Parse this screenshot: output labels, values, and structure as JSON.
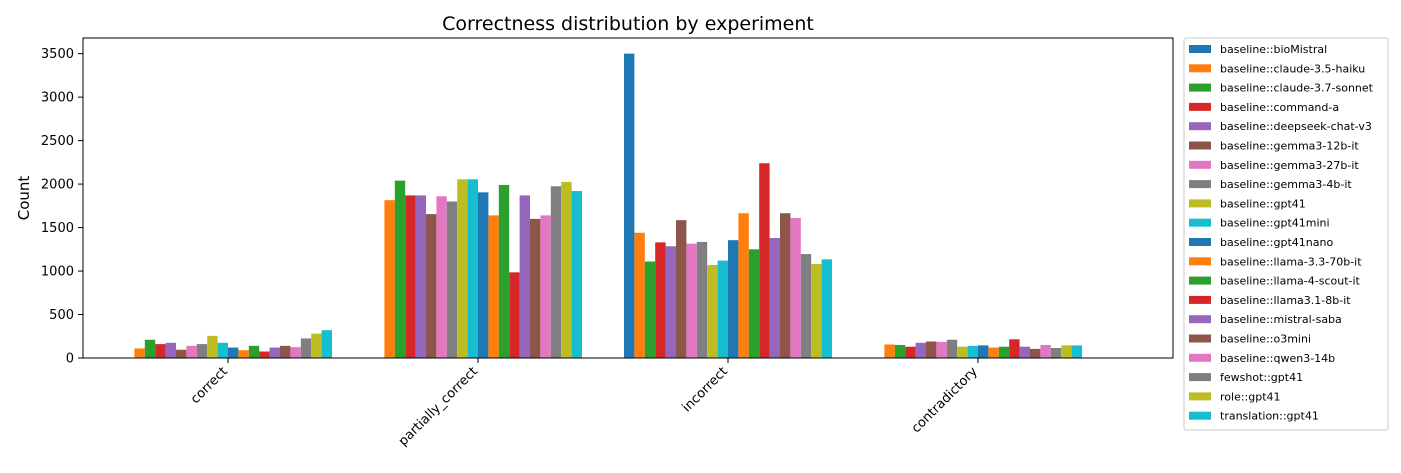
{
  "chart_data": {
    "type": "bar",
    "title": "Correctness distribution by experiment",
    "xlabel": "",
    "ylabel": "Count",
    "ylim": [
      0,
      3680
    ],
    "yticks": [
      0,
      500,
      1000,
      1500,
      2000,
      2500,
      3000,
      3500
    ],
    "grid": false,
    "legend_position": "right",
    "categories": [
      "correct",
      "partially_correct",
      "incorrect",
      "contradictory"
    ],
    "series": [
      {
        "name": "baseline::bioMistral",
        "color": "#1f77b4",
        "values": [
          0,
          0,
          3500,
          0
        ]
      },
      {
        "name": "baseline::claude-3.5-haiku",
        "color": "#ff7f0e",
        "values": [
          110,
          1815,
          1440,
          155
        ]
      },
      {
        "name": "baseline::claude-3.7-sonnet",
        "color": "#2ca02c",
        "values": [
          210,
          2040,
          1110,
          150
        ]
      },
      {
        "name": "baseline::command-a",
        "color": "#d62728",
        "values": [
          160,
          1870,
          1330,
          130
        ]
      },
      {
        "name": "baseline::deepseek-chat-v3",
        "color": "#9467bd",
        "values": [
          175,
          1870,
          1285,
          175
        ]
      },
      {
        "name": "baseline::gemma3-12b-it",
        "color": "#8c564b",
        "values": [
          95,
          1655,
          1585,
          190
        ]
      },
      {
        "name": "baseline::gemma3-27b-it",
        "color": "#e377c2",
        "values": [
          140,
          1860,
          1315,
          185
        ]
      },
      {
        "name": "baseline::gemma3-4b-it",
        "color": "#7f7f7f",
        "values": [
          160,
          1800,
          1335,
          210
        ]
      },
      {
        "name": "baseline::gpt41",
        "color": "#bcbd22",
        "values": [
          255,
          2055,
          1070,
          130
        ]
      },
      {
        "name": "baseline::gpt41mini",
        "color": "#17becf",
        "values": [
          175,
          2055,
          1120,
          140
        ]
      },
      {
        "name": "baseline::gpt41nano",
        "color": "#1f77b4",
        "values": [
          120,
          1905,
          1355,
          145
        ]
      },
      {
        "name": "baseline::llama-3.3-70b-it",
        "color": "#ff7f0e",
        "values": [
          90,
          1640,
          1665,
          120
        ]
      },
      {
        "name": "baseline::llama-4-scout-it",
        "color": "#2ca02c",
        "values": [
          140,
          1990,
          1250,
          130
        ]
      },
      {
        "name": "baseline::llama3.1-8b-it",
        "color": "#d62728",
        "values": [
          75,
          985,
          2240,
          215
        ]
      },
      {
        "name": "baseline::mistral-saba",
        "color": "#9467bd",
        "values": [
          120,
          1870,
          1380,
          130
        ]
      },
      {
        "name": "baseline::o3mini",
        "color": "#8c564b",
        "values": [
          140,
          1600,
          1665,
          105
        ]
      },
      {
        "name": "baseline::qwen3-14b",
        "color": "#e377c2",
        "values": [
          125,
          1640,
          1610,
          150
        ]
      },
      {
        "name": "fewshot::gpt41",
        "color": "#7f7f7f",
        "values": [
          225,
          1975,
          1195,
          115
        ]
      },
      {
        "name": "role::gpt41",
        "color": "#bcbd22",
        "values": [
          280,
          2025,
          1080,
          145
        ]
      },
      {
        "name": "translation::gpt41",
        "color": "#17becf",
        "values": [
          320,
          1920,
          1135,
          145
        ]
      }
    ]
  }
}
